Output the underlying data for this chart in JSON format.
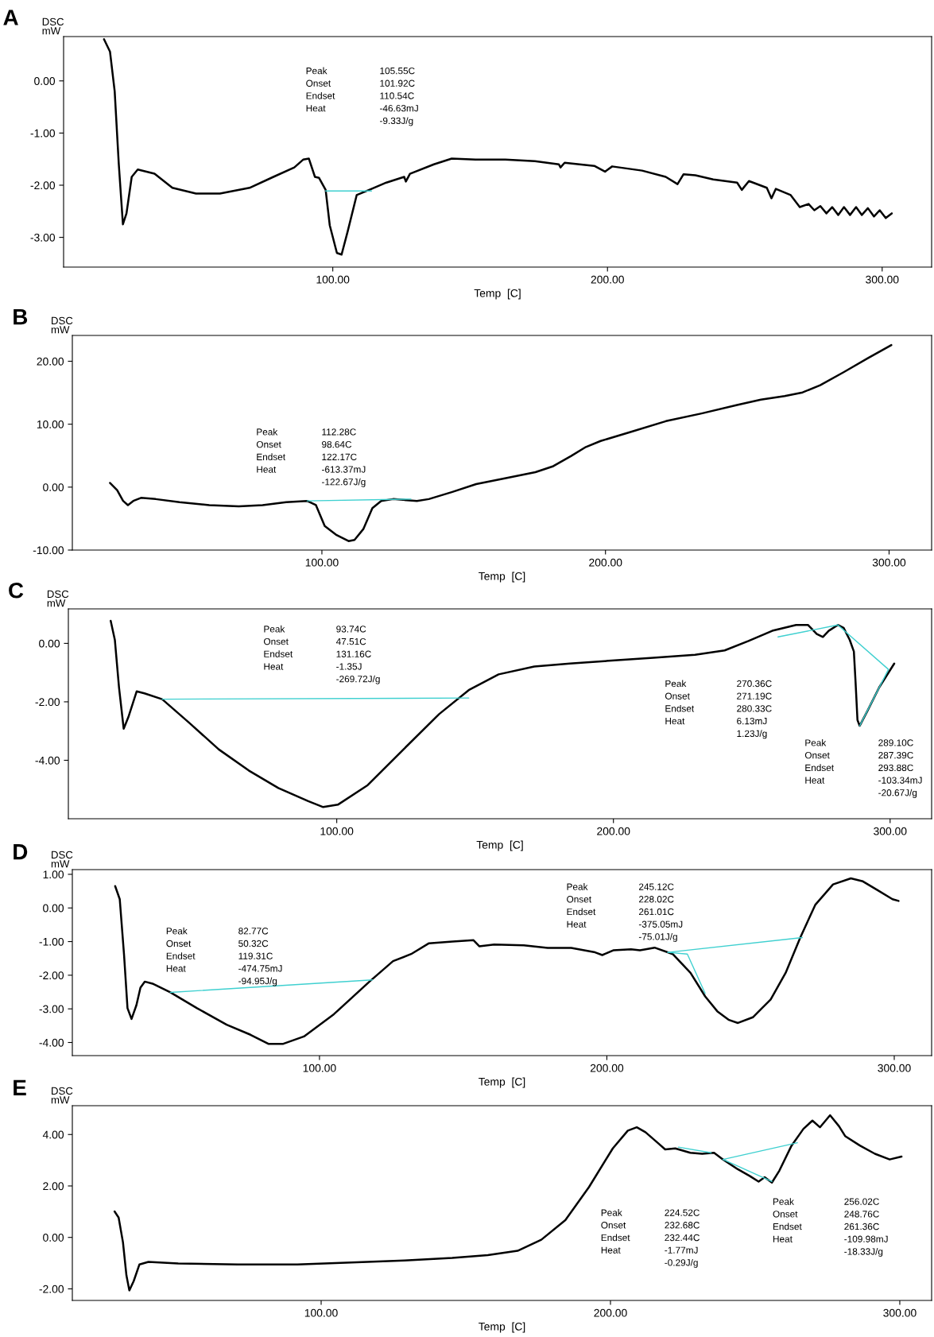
{
  "chart_data": [
    {
      "type": "line",
      "title": "A",
      "xlabel": "Temp  [C]",
      "ylabel": "DSC\nmW",
      "xlim": [
        2,
        318
      ],
      "ylim": [
        -3.57,
        0.85
      ],
      "xticks": [
        {
          "value": 100,
          "label": "100.00"
        },
        {
          "value": 200,
          "label": "200.00"
        },
        {
          "value": 300,
          "label": "300.00"
        }
      ],
      "yticks": [
        {
          "value": 0,
          "label": "0.00"
        },
        {
          "value": -1,
          "label": "-1.00"
        },
        {
          "value": -2,
          "label": "-2.00"
        },
        {
          "value": -3,
          "label": "-3.00"
        }
      ],
      "grid": false,
      "series": [
        {
          "color": "#000000",
          "x": [
            16.7,
            18.9,
            20.6,
            22.1,
            23.6,
            24.9,
            26.8,
            29.0,
            35.1,
            41.6,
            50.2,
            58.9,
            69.7,
            78.4,
            86.0,
            89.2,
            91.3,
            93.5,
            95.0,
            97.4,
            98.9,
            101.5,
            103.2,
            105.4,
            108.7,
            114.1,
            119.5,
            126.0,
            126.6,
            128.1,
            136.8,
            143.3,
            152.0,
            162.8,
            173.6,
            182.3,
            182.9,
            184.4,
            195.2,
            199.1,
            201.7,
            212.6,
            221.2,
            225.5,
            227.7,
            232.0,
            238.5,
            247.2,
            248.9,
            251.5,
            258.0,
            259.7,
            261.3,
            266.7,
            270.0,
            273.2,
            275.3,
            277.5,
            279.7,
            281.8,
            284.0,
            286.1,
            288.3,
            290.5,
            292.6,
            294.8,
            297.0,
            299.1,
            301.3,
            303.5
          ],
          "values": [
            0.8,
            0.56,
            -0.2,
            -1.6,
            -2.75,
            -2.54,
            -1.84,
            -1.7,
            -1.78,
            -2.05,
            -2.16,
            -2.16,
            -2.05,
            -1.84,
            -1.66,
            -1.51,
            -1.49,
            -1.84,
            -1.86,
            -2.09,
            -2.77,
            -3.3,
            -3.33,
            -2.89,
            -2.19,
            -2.07,
            -1.95,
            -1.84,
            -1.93,
            -1.78,
            -1.6,
            -1.49,
            -1.51,
            -1.51,
            -1.54,
            -1.6,
            -1.66,
            -1.57,
            -1.63,
            -1.74,
            -1.64,
            -1.72,
            -1.84,
            -1.98,
            -1.79,
            -1.81,
            -1.89,
            -1.95,
            -2.09,
            -1.92,
            -2.05,
            -2.25,
            -2.07,
            -2.19,
            -2.42,
            -2.36,
            -2.48,
            -2.4,
            -2.54,
            -2.42,
            -2.57,
            -2.42,
            -2.57,
            -2.42,
            -2.57,
            -2.44,
            -2.6,
            -2.48,
            -2.63,
            -2.54
          ]
        },
        {
          "color": "#3fd0d0",
          "x": [
            97.4,
            114.1
          ],
          "values": [
            -2.11,
            -2.11
          ]
        }
      ],
      "annotations": [
        "Peak\nOnset\nEndset\nHeat",
        "105.55C\n101.92C\n110.54C\n-46.63mJ\n-9.33J/g"
      ]
    },
    {
      "type": "line",
      "title": "B",
      "xlabel": "Temp  [C]",
      "ylabel": "DSC\nmW",
      "xlim": [
        12,
        315
      ],
      "ylim": [
        -10,
        24.1
      ],
      "xticks": [
        {
          "value": 100,
          "label": "100.00"
        },
        {
          "value": 200,
          "label": "200.00"
        },
        {
          "value": 300,
          "label": "300.00"
        }
      ],
      "yticks": [
        {
          "value": 20,
          "label": "20.00"
        },
        {
          "value": 10,
          "label": "10.00"
        },
        {
          "value": 0,
          "label": "0.00"
        },
        {
          "value": -10,
          "label": "-10.00"
        }
      ],
      "grid": false,
      "series": [
        {
          "color": "#000000",
          "x": [
            25.3,
            27.8,
            29.9,
            31.6,
            33.5,
            36.2,
            41.4,
            49.8,
            60.3,
            70.7,
            79.1,
            87.4,
            94.8,
            97.9,
            101.0,
            105.2,
            109.4,
            111.5,
            114.6,
            117.8,
            120.9,
            125.1,
            133.5,
            137.7,
            146.0,
            154.4,
            164.9,
            175.3,
            181.6,
            187.9,
            193.1,
            198.3,
            208.8,
            221.3,
            233.9,
            246.4,
            254.8,
            263.2,
            269.5,
            275.7,
            284.1,
            292.5,
            300.8
          ],
          "values": [
            0.67,
            -0.48,
            -2.19,
            -2.86,
            -2.19,
            -1.71,
            -1.9,
            -2.38,
            -2.86,
            -3.05,
            -2.86,
            -2.38,
            -2.19,
            -2.86,
            -6.19,
            -7.62,
            -8.57,
            -8.38,
            -6.67,
            -3.33,
            -2.19,
            -1.9,
            -2.19,
            -1.9,
            -0.76,
            0.48,
            1.43,
            2.38,
            3.33,
            4.95,
            6.38,
            7.33,
            8.76,
            10.48,
            11.71,
            13.05,
            13.9,
            14.48,
            15.05,
            16.19,
            18.29,
            20.48,
            22.57
          ]
        },
        {
          "color": "#3fd0d0",
          "x": [
            94.8,
            131.4
          ],
          "values": [
            -2.19,
            -1.9
          ]
        }
      ],
      "annotations": [
        "Peak\nOnset\nEndset\nHeat",
        "112.28C\n98.64C\n122.17C\n-613.37mJ\n-122.67J/g"
      ]
    },
    {
      "type": "line",
      "title": "C",
      "xlabel": "Temp  [C]",
      "ylabel": "DSC\nmW",
      "xlim": [
        3,
        315
      ],
      "ylim": [
        -6.0,
        1.18
      ],
      "xticks": [
        {
          "value": 100,
          "label": "100.00"
        },
        {
          "value": 200,
          "label": "200.00"
        },
        {
          "value": 300,
          "label": "300.00"
        }
      ],
      "yticks": [
        {
          "value": 0,
          "label": "0.00"
        },
        {
          "value": -2,
          "label": "-2.00"
        },
        {
          "value": -4,
          "label": "-4.00"
        }
      ],
      "grid": false,
      "series": [
        {
          "color": "#000000",
          "x": [
            18.3,
            19.8,
            21.3,
            23.0,
            24.7,
            27.7,
            30.5,
            36.9,
            46.7,
            57.4,
            68.2,
            78.9,
            89.7,
            95.1,
            100.4,
            111.2,
            124.1,
            137.0,
            147.7,
            158.5,
            171.4,
            184.3,
            199.4,
            214.4,
            229.5,
            240.2,
            248.8,
            257.4,
            266.0,
            270.3,
            273.5,
            275.7,
            277.8,
            281.1,
            283.2,
            285.4,
            286.9,
            287.5,
            288.2,
            289.0,
            291.8,
            296.1,
            301.5
          ],
          "values": [
            0.77,
            0.12,
            -1.5,
            -2.92,
            -2.52,
            -1.64,
            -1.71,
            -1.91,
            -2.72,
            -3.63,
            -4.35,
            -4.95,
            -5.4,
            -5.6,
            -5.52,
            -4.85,
            -3.63,
            -2.42,
            -1.6,
            -1.06,
            -0.79,
            -0.69,
            -0.59,
            -0.49,
            -0.39,
            -0.24,
            0.08,
            0.43,
            0.63,
            0.63,
            0.32,
            0.22,
            0.43,
            0.63,
            0.53,
            0.12,
            -0.28,
            -1.3,
            -2.62,
            -2.82,
            -2.31,
            -1.5,
            -0.69
          ]
        },
        {
          "color": "#3fd0d0",
          "x": [
            36.9,
            147.7
          ],
          "values": [
            -1.91,
            -1.87
          ]
        },
        {
          "color": "#3fd0d0",
          "x": [
            259.5,
            281.1
          ],
          "values": [
            0.22,
            0.63
          ]
        },
        {
          "color": "#3fd0d0",
          "x": [
            281.1,
            299.4,
            289.0
          ],
          "values": [
            0.63,
            -0.89,
            -2.82
          ]
        }
      ],
      "annotations": [
        "Peak\nOnset\nEndset\nHeat",
        "93.74C\n47.51C\n131.16C\n-1.35J\n-269.72J/g",
        "Peak\nOnset\nEndset\nHeat",
        "270.36C\n271.19C\n280.33C\n6.13mJ\n1.23J/g",
        "Peak\nOnset\nEndset\nHeat",
        "289.10C\n287.39C\n293.88C\n-103.34mJ\n-20.67J/g"
      ]
    },
    {
      "type": "line",
      "title": "D",
      "xlabel": "Temp  [C]",
      "ylabel": "DSC\nmW",
      "xlim": [
        14,
        313
      ],
      "ylim": [
        -4.39,
        1.14
      ],
      "xticks": [
        {
          "value": 100,
          "label": "100.00"
        },
        {
          "value": 200,
          "label": "200.00"
        },
        {
          "value": 300,
          "label": "300.00"
        }
      ],
      "yticks": [
        {
          "value": 1,
          "label": "1.00"
        },
        {
          "value": 0,
          "label": "0.00"
        },
        {
          "value": -1,
          "label": "-1.00"
        },
        {
          "value": -2,
          "label": "-2.00"
        },
        {
          "value": -3,
          "label": "-3.00"
        },
        {
          "value": -4,
          "label": "-4.00"
        }
      ],
      "grid": false,
      "series": [
        {
          "color": "#000000",
          "x": [
            28.9,
            30.5,
            32.0,
            33.2,
            34.6,
            36.3,
            37.7,
            39.2,
            41.9,
            48.1,
            57.4,
            67.7,
            76.0,
            82.2,
            87.4,
            94.6,
            105.0,
            117.4,
            125.6,
            131.9,
            138.1,
            146.3,
            153.6,
            155.6,
            160.8,
            171.1,
            179.4,
            187.6,
            195.9,
            198.4,
            202.2,
            208.4,
            211.5,
            213.5,
            216.6,
            222.9,
            229.1,
            234.2,
            238.4,
            242.5,
            245.6,
            250.8,
            257.0,
            262.2,
            267.3,
            272.5,
            278.7,
            284.9,
            289.1,
            294.2,
            299.4,
            301.5
          ],
          "values": [
            0.65,
            0.26,
            -1.4,
            -2.98,
            -3.3,
            -2.89,
            -2.37,
            -2.19,
            -2.25,
            -2.51,
            -2.98,
            -3.47,
            -3.77,
            -4.04,
            -4.04,
            -3.82,
            -3.16,
            -2.19,
            -1.58,
            -1.37,
            -1.05,
            -1.0,
            -0.96,
            -1.14,
            -1.09,
            -1.11,
            -1.19,
            -1.19,
            -1.32,
            -1.4,
            -1.26,
            -1.23,
            -1.26,
            -1.23,
            -1.18,
            -1.37,
            -1.93,
            -2.63,
            -3.07,
            -3.33,
            -3.42,
            -3.25,
            -2.72,
            -1.93,
            -0.88,
            0.09,
            0.7,
            0.88,
            0.79,
            0.53,
            0.26,
            0.21
          ]
        },
        {
          "color": "#3fd0d0",
          "x": [
            48.1,
            118.4
          ],
          "values": [
            -2.51,
            -2.14
          ]
        },
        {
          "color": "#3fd0d0",
          "x": [
            221.2,
            268.0
          ],
          "values": [
            -1.32,
            -0.88
          ]
        },
        {
          "color": "#3fd0d0",
          "x": [
            221.2,
            228.0,
            234.2
          ],
          "values": [
            -1.32,
            -1.37,
            -2.54
          ]
        }
      ],
      "annotations": [
        "Peak\nOnset\nEndset\nHeat",
        "82.77C\n50.32C\n119.31C\n-474.75mJ\n-94.95J/g",
        "Peak\nOnset\nEndset\nHeat",
        "245.12C\n228.02C\n261.01C\n-375.05mJ\n-75.01J/g"
      ]
    },
    {
      "type": "line",
      "title": "E",
      "xlabel": "Temp  [C]",
      "ylabel": "DSC\nmW",
      "xlim": [
        14,
        311
      ],
      "ylim": [
        -2.45,
        5.12
      ],
      "xticks": [
        {
          "value": 100,
          "label": "100.00"
        },
        {
          "value": 200,
          "label": "200.00"
        },
        {
          "value": 300,
          "label": "300.00"
        }
      ],
      "yticks": [
        {
          "value": 4,
          "label": "4.00"
        },
        {
          "value": 2,
          "label": "2.00"
        },
        {
          "value": 0,
          "label": "0.00"
        },
        {
          "value": -2,
          "label": "-2.00"
        }
      ],
      "grid": false,
      "series": [
        {
          "color": "#000000",
          "x": [
            28.6,
            30.0,
            31.5,
            32.7,
            33.7,
            35.2,
            37.2,
            40.3,
            50.6,
            71.2,
            91.8,
            112.3,
            128.8,
            145.3,
            157.6,
            167.9,
            176.1,
            184.4,
            192.6,
            200.8,
            206.0,
            209.1,
            212.1,
            216.3,
            218.9,
            222.4,
            227.6,
            231.7,
            235.8,
            238.9,
            244.0,
            248.1,
            251.2,
            253.3,
            255.8,
            258.4,
            262.6,
            266.7,
            269.8,
            272.4,
            275.9,
            279.0,
            281.1,
            286.2,
            291.4,
            296.5,
            300.6
          ],
          "values": [
            1.01,
            0.77,
            -0.19,
            -1.48,
            -2.06,
            -1.7,
            -1.05,
            -0.95,
            -1.01,
            -1.05,
            -1.05,
            -0.97,
            -0.9,
            -0.8,
            -0.69,
            -0.52,
            -0.09,
            0.67,
            1.96,
            3.46,
            4.15,
            4.28,
            4.09,
            3.68,
            3.42,
            3.46,
            3.29,
            3.25,
            3.29,
            3.03,
            2.65,
            2.39,
            2.17,
            2.34,
            2.13,
            2.6,
            3.57,
            4.22,
            4.54,
            4.28,
            4.75,
            4.32,
            3.94,
            3.57,
            3.25,
            3.03,
            3.14
          ]
        },
        {
          "color": "#3fd0d0",
          "x": [
            223.5,
            234.8
          ],
          "values": [
            3.51,
            3.29
          ]
        },
        {
          "color": "#3fd0d0",
          "x": [
            238.9,
            264.6
          ],
          "values": [
            3.03,
            3.68
          ]
        },
        {
          "color": "#3fd0d0",
          "x": [
            238.9,
            255.8
          ],
          "values": [
            3.03,
            2.17
          ]
        }
      ],
      "annotations": [
        "Peak\nOnset\nEndset\nHeat",
        "224.52C\n232.68C\n232.44C\n-1.77mJ\n-0.29J/g",
        "Peak\nOnset\nEndset\nHeat",
        "256.02C\n248.76C\n261.36C\n-109.98mJ\n-18.33J/g"
      ]
    }
  ]
}
